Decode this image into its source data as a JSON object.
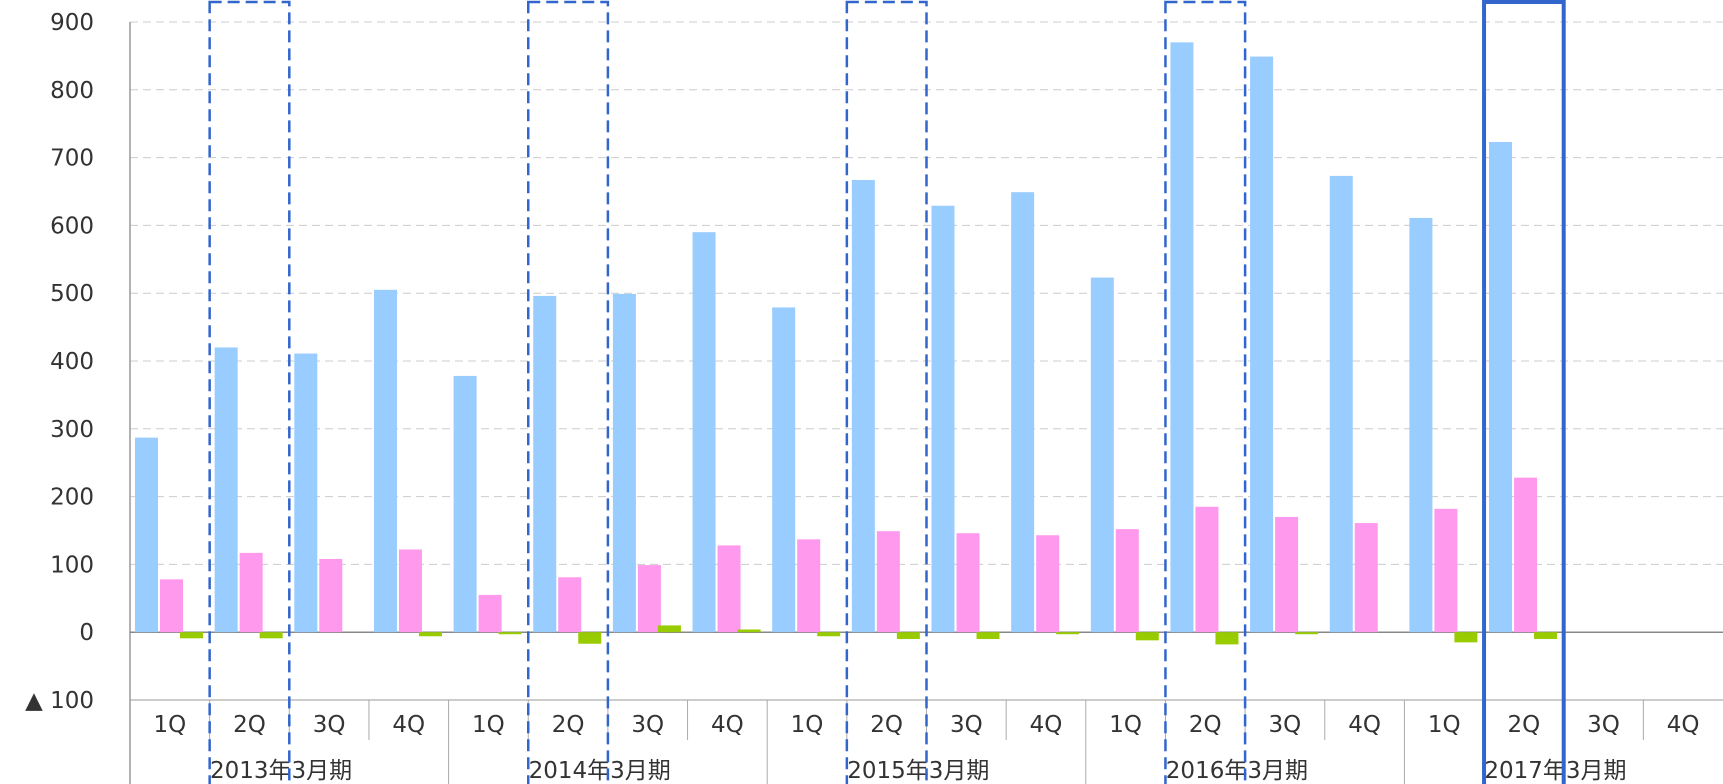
{
  "chart_data": {
    "type": "bar",
    "title": "",
    "xlabel": "",
    "ylabel": "",
    "ylim": [
      -100,
      900
    ],
    "yticks": [
      {
        "value": 900,
        "label": "900"
      },
      {
        "value": 800,
        "label": "800"
      },
      {
        "value": 700,
        "label": "700"
      },
      {
        "value": 600,
        "label": "600"
      },
      {
        "value": 500,
        "label": "500"
      },
      {
        "value": 400,
        "label": "400"
      },
      {
        "value": 300,
        "label": "300"
      },
      {
        "value": 200,
        "label": "200"
      },
      {
        "value": 100,
        "label": "100"
      },
      {
        "value": 0,
        "label": "0"
      },
      {
        "value": -100,
        "label": "▲ 100"
      }
    ],
    "grid": true,
    "categories": [
      "1Q",
      "2Q",
      "3Q",
      "4Q",
      "1Q",
      "2Q",
      "3Q",
      "4Q",
      "1Q",
      "2Q",
      "3Q",
      "4Q",
      "1Q",
      "2Q",
      "3Q",
      "4Q",
      "1Q",
      "2Q",
      "3Q",
      "4Q"
    ],
    "fiscal_years": [
      "2013年3月期",
      "2014年3月期",
      "2015年3月期",
      "2016年3月期",
      "2017年3月期"
    ],
    "series": [
      {
        "color": "#99ccff",
        "values": [
          287,
          420,
          411,
          505,
          378,
          496,
          499,
          590,
          479,
          667,
          629,
          649,
          523,
          870,
          849,
          673,
          611,
          723,
          null,
          null
        ]
      },
      {
        "color": "#ff99ee",
        "values": [
          78,
          117,
          108,
          122,
          55,
          81,
          99,
          128,
          137,
          149,
          146,
          143,
          152,
          185,
          170,
          161,
          182,
          228,
          null,
          null
        ]
      },
      {
        "color": "#99cc00",
        "values": [
          -9,
          -9,
          0,
          -6,
          -3,
          -17,
          10,
          4,
          -6,
          -10,
          -10,
          -3,
          -12,
          -18,
          -3,
          0,
          -15,
          -10,
          null,
          null
        ]
      }
    ],
    "highlight": {
      "dashed_categories": [
        1,
        5,
        9,
        13
      ],
      "solid_category": 17,
      "color": "#3366cc"
    }
  }
}
